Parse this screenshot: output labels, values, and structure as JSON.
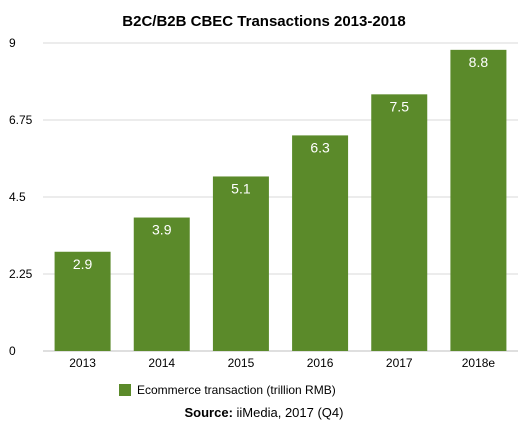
{
  "chart_data": {
    "type": "bar",
    "title": "B2C/B2B CBEC Transactions 2013-2018",
    "categories": [
      "2013",
      "2014",
      "2015",
      "2016",
      "2017",
      "2018e"
    ],
    "series": [
      {
        "name": "Ecommerce transaction (trillion RMB)",
        "values": [
          2.9,
          3.9,
          5.1,
          6.3,
          7.5,
          8.8
        ]
      }
    ],
    "data_labels": [
      "2.9",
      "3.9",
      "5.1",
      "6.3",
      "7.5",
      "8.8"
    ],
    "y_ticks": [
      "0",
      "2.25",
      "4.5",
      "6.75",
      "9"
    ],
    "ylim": [
      0,
      9
    ],
    "grid": true,
    "legend_position": "bottom",
    "bar_color": "#5b8a2a",
    "grid_color": "#d9d9d9"
  },
  "source": {
    "label": "Source:",
    "text": "iiMedia, 2017 (Q4)"
  }
}
